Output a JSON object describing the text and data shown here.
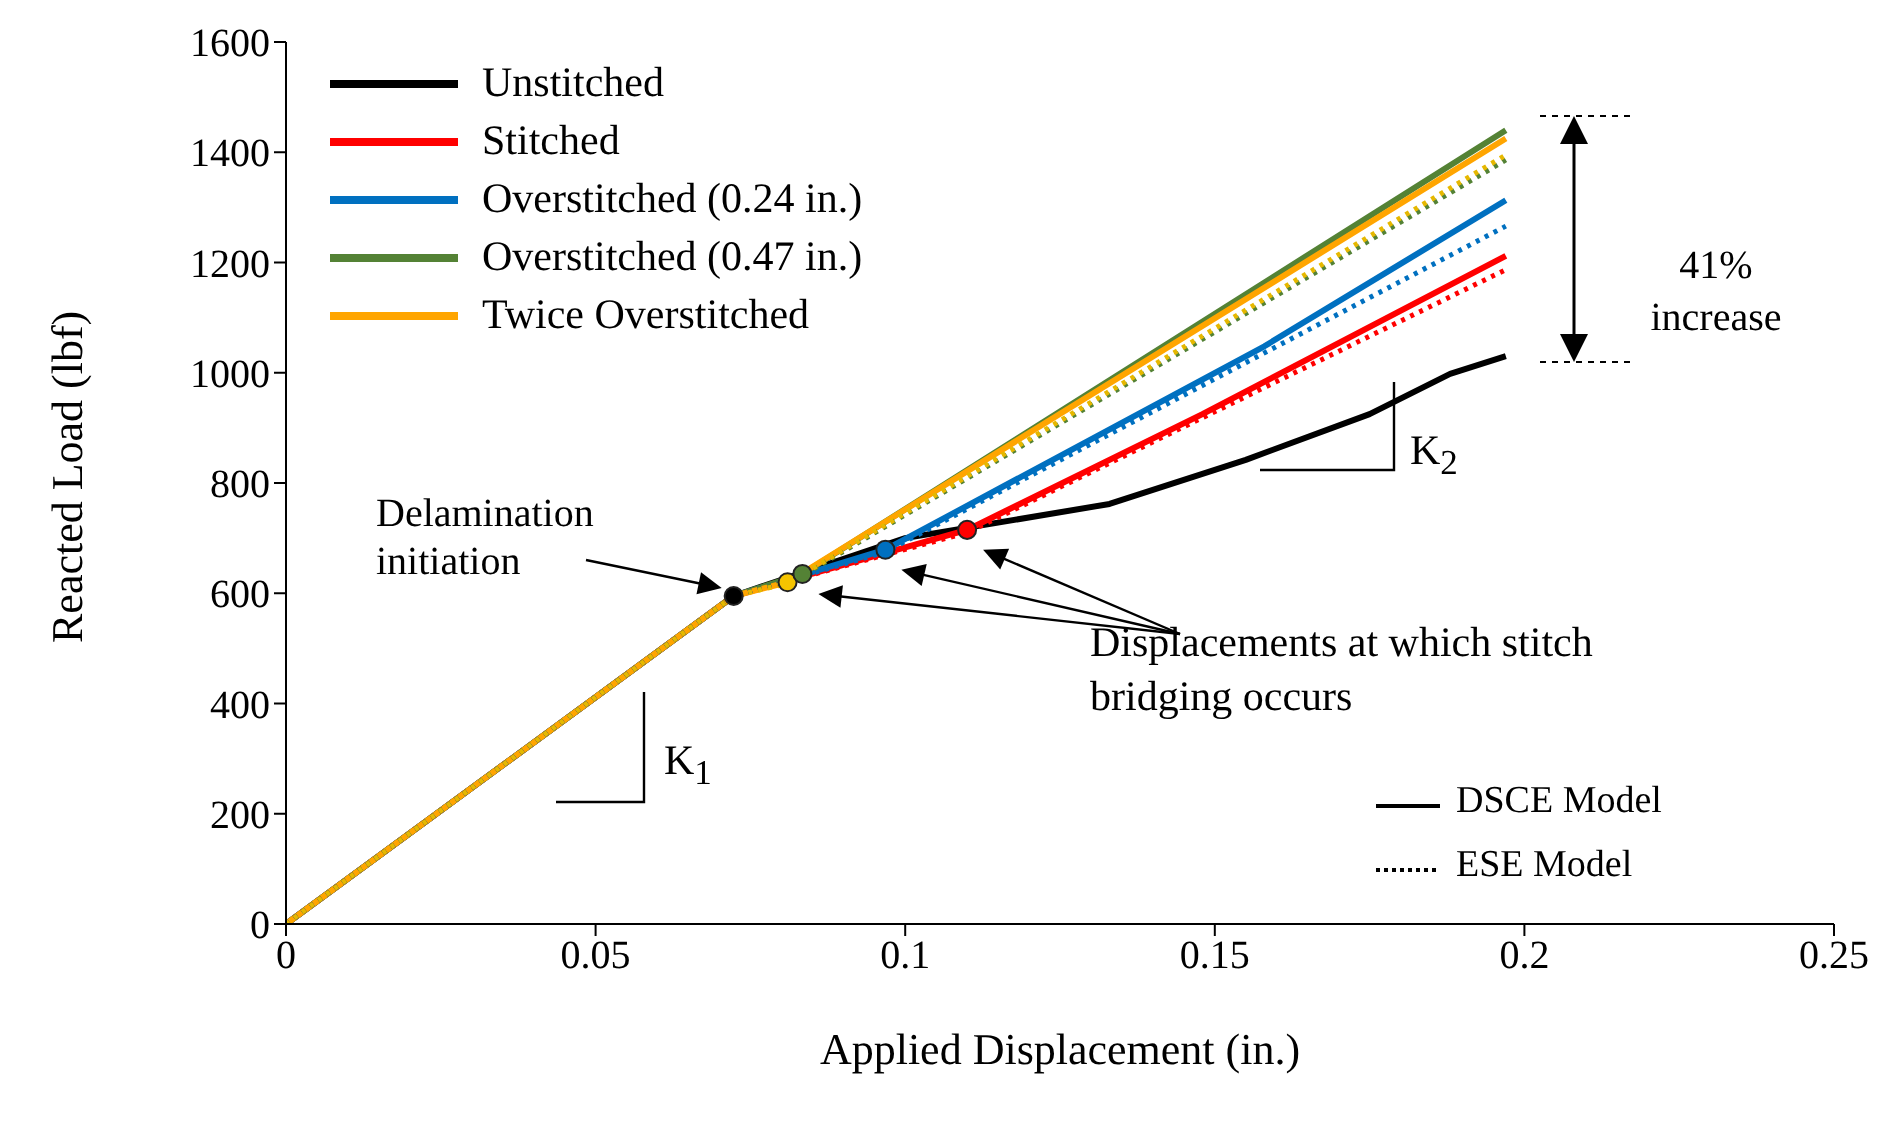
{
  "chart_data": {
    "type": "line",
    "xlabel": "Applied Displacement (in.)",
    "ylabel": "Reacted Load (lbf)",
    "xlim": [
      0,
      0.25
    ],
    "ylim": [
      0,
      1600
    ],
    "xticks": [
      0,
      0.05,
      0.1,
      0.15,
      0.2,
      0.25
    ],
    "yticks": [
      0,
      200,
      400,
      600,
      800,
      1000,
      1200,
      1400,
      1600
    ],
    "grid": false,
    "legend": "top left",
    "series": [
      {
        "name": "Unstitched",
        "color": "#000000",
        "line_style": "solid",
        "x": [
          0,
          0.0723,
          0.1,
          0.133,
          0.155,
          0.175,
          0.188,
          0.197
        ],
        "values": [
          0,
          595,
          700,
          762,
          842,
          925,
          998,
          1030
        ]
      },
      {
        "name": "Stitched",
        "color": "#ff0000",
        "line_style": "solid",
        "x": [
          0,
          0.0723,
          0.11,
          0.148,
          0.197
        ],
        "values": [
          0,
          595,
          715,
          925,
          1212
        ]
      },
      {
        "name": "Overstitched (0.24 in.)",
        "color": "#0070c0",
        "line_style": "solid",
        "x": [
          0,
          0.0723,
          0.0968,
          0.158,
          0.197
        ],
        "values": [
          0,
          595,
          679,
          1048,
          1313
        ]
      },
      {
        "name": "Overstitched (0.47 in.)",
        "color": "#548235",
        "line_style": "solid",
        "x": [
          0,
          0.0723,
          0.0834,
          0.197
        ],
        "values": [
          0,
          595,
          635,
          1440
        ]
      },
      {
        "name": "Twice Overstitched",
        "color": "#ffa500",
        "line_style": "solid",
        "x": [
          0,
          0.0723,
          0.081,
          0.197
        ],
        "values": [
          0,
          595,
          620,
          1425
        ]
      },
      {
        "color": "#ff0000",
        "line_style": "dotted",
        "x": [
          0,
          0.0723,
          0.11,
          0.197
        ],
        "values": [
          0,
          595,
          710,
          1187
        ]
      },
      {
        "color": "#0070c0",
        "line_style": "dotted",
        "x": [
          0,
          0.0723,
          0.0968,
          0.197
        ],
        "values": [
          0,
          595,
          675,
          1266
        ]
      },
      {
        "color": "#548235",
        "line_style": "dotted",
        "x": [
          0,
          0.0723,
          0.0834,
          0.197
        ],
        "values": [
          0,
          595,
          632,
          1386
        ]
      },
      {
        "color": "#e6b800",
        "line_style": "dotted",
        "x": [
          0,
          0.0723,
          0.081,
          0.197
        ],
        "values": [
          0,
          595,
          618,
          1395
        ]
      },
      {
        "type": "scatter",
        "marker": "circle",
        "x": [
          0.0723,
          0.081,
          0.0834,
          0.0968,
          0.11
        ],
        "values": [
          595,
          620,
          635,
          679,
          715
        ],
        "colors": [
          "#000000",
          "#f5c400",
          "#548235",
          "#0070c0",
          "#ff0000"
        ]
      }
    ],
    "annotations": [
      "Delamination initiation",
      "Displacements at which stitch bridging occurs",
      "41% increase",
      "K$_{1}$",
      "K$_{2}$",
      "DSCE Model",
      "ESE Model"
    ]
  }
}
